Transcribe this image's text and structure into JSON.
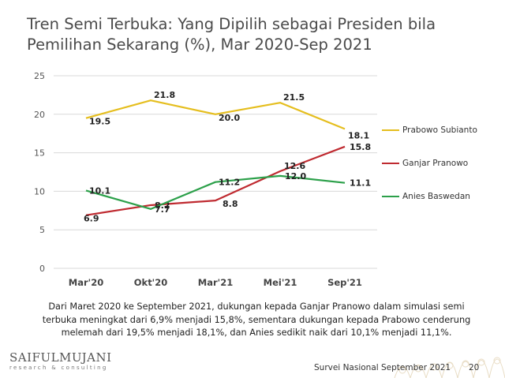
{
  "title": "Tren Semi Terbuka: Yang Dipilih sebagai Presiden bila Pemilihan Sekarang (%), Mar 2020-Sep 2021",
  "chart_data": {
    "type": "line",
    "categories": [
      "Mar'20",
      "Okt'20",
      "Mar'21",
      "Mei'21",
      "Sep'21"
    ],
    "ylim": [
      0,
      25
    ],
    "yticks": [
      "0",
      "5",
      "10",
      "15",
      "20",
      "25"
    ],
    "grid": "y",
    "legend_position": "right",
    "series": [
      {
        "name": "Prabowo Subianto",
        "color": "#e5be1e",
        "values": [
          19.5,
          21.8,
          20.0,
          21.5,
          18.1
        ],
        "labels": [
          "19.5",
          "21.8",
          "20.0",
          "21.5",
          "18.1"
        ]
      },
      {
        "name": "Ganjar Pranowo",
        "color": "#bf2a30",
        "values": [
          6.9,
          8.2,
          8.8,
          12.6,
          15.8
        ],
        "labels": [
          "6.9",
          "8.2",
          "8.8",
          "12.6",
          "15.8"
        ]
      },
      {
        "name": "Anies Baswedan",
        "color": "#2ca04a",
        "values": [
          10.1,
          7.7,
          11.2,
          12.0,
          11.1
        ],
        "labels": [
          "10.1",
          "7.7",
          "11.2",
          "12.0",
          "11.1"
        ]
      }
    ]
  },
  "caption": "Dari Maret 2020 ke September 2021, dukungan kepada Ganjar Pranowo dalam simulasi semi terbuka meningkat dari 6,9% menjadi 15,8%, sementara dukungan kepada Prabowo cenderung melemah dari 19,5% menjadi 18,1%, dan Anies sedikit naik dari 10,1% menjadi 11,1%.",
  "logo": {
    "name": "SAIFULMUJANI",
    "sub": "research & consulting"
  },
  "footer": {
    "text": "Survei Nasional September 2021",
    "page": "20"
  },
  "colors": {
    "grid": "#d9d9d9",
    "ornament": "#e8dcc4"
  }
}
